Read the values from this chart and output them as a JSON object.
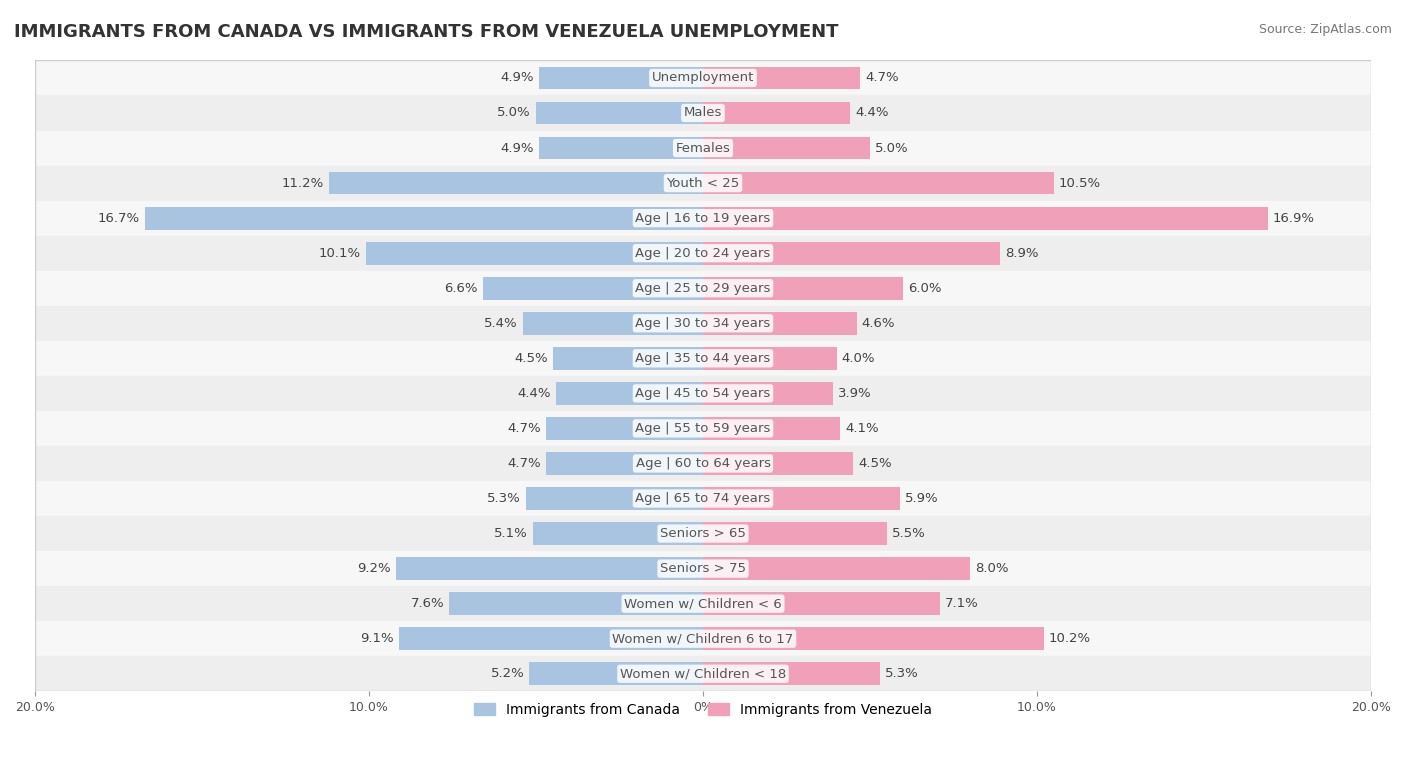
{
  "title": "IMMIGRANTS FROM CANADA VS IMMIGRANTS FROM VENEZUELA UNEMPLOYMENT",
  "source": "Source: ZipAtlas.com",
  "legend_canada": "Immigrants from Canada",
  "legend_venezuela": "Immigrants from Venezuela",
  "categories": [
    "Unemployment",
    "Males",
    "Females",
    "Youth < 25",
    "Age | 16 to 19 years",
    "Age | 20 to 24 years",
    "Age | 25 to 29 years",
    "Age | 30 to 34 years",
    "Age | 35 to 44 years",
    "Age | 45 to 54 years",
    "Age | 55 to 59 years",
    "Age | 60 to 64 years",
    "Age | 65 to 74 years",
    "Seniors > 65",
    "Seniors > 75",
    "Women w/ Children < 6",
    "Women w/ Children 6 to 17",
    "Women w/ Children < 18"
  ],
  "canada_values": [
    4.9,
    5.0,
    4.9,
    11.2,
    16.7,
    10.1,
    6.6,
    5.4,
    4.5,
    4.4,
    4.7,
    4.7,
    5.3,
    5.1,
    9.2,
    7.6,
    9.1,
    5.2
  ],
  "venezuela_values": [
    4.7,
    4.4,
    5.0,
    10.5,
    16.9,
    8.9,
    6.0,
    4.6,
    4.0,
    3.9,
    4.1,
    4.5,
    5.9,
    5.5,
    8.0,
    7.1,
    10.2,
    5.3
  ],
  "color_canada": "#a8c4e0",
  "color_venezuela": "#f0a0b8",
  "color_canada_dark": "#5b9bd5",
  "color_venezuela_dark": "#e06080",
  "bar_bg": "#f0f0f0",
  "row_bg_light": "#f7f7f7",
  "row_bg_alt": "#eeeeee",
  "axis_limit": 20.0,
  "bar_height": 0.65,
  "label_fontsize": 9.5,
  "category_fontsize": 9.5,
  "title_fontsize": 13,
  "source_fontsize": 9
}
